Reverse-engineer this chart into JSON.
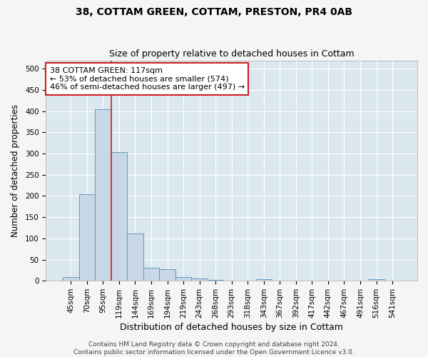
{
  "title": "38, COTTAM GREEN, COTTAM, PRESTON, PR4 0AB",
  "subtitle": "Size of property relative to detached houses in Cottam",
  "xlabel": "Distribution of detached houses by size in Cottam",
  "ylabel": "Number of detached properties",
  "bar_labels": [
    "45sqm",
    "70sqm",
    "95sqm",
    "119sqm",
    "144sqm",
    "169sqm",
    "194sqm",
    "219sqm",
    "243sqm",
    "268sqm",
    "293sqm",
    "318sqm",
    "343sqm",
    "367sqm",
    "392sqm",
    "417sqm",
    "442sqm",
    "467sqm",
    "491sqm",
    "516sqm",
    "541sqm"
  ],
  "bar_values": [
    8,
    204,
    405,
    303,
    112,
    30,
    27,
    8,
    5,
    2,
    0,
    0,
    3,
    0,
    0,
    0,
    0,
    0,
    0,
    4,
    0
  ],
  "bar_color": "#c8d8e8",
  "bar_edge_color": "#6699bb",
  "bar_width": 1.0,
  "vline_x_index": 2.5,
  "vline_color": "#cc2222",
  "annotation_text": "38 COTTAM GREEN: 117sqm\n← 53% of detached houses are smaller (574)\n46% of semi-detached houses are larger (497) →",
  "annotation_box_facecolor": "#ffffff",
  "annotation_box_edgecolor": "#cc2222",
  "ylim": [
    0,
    520
  ],
  "yticks": [
    0,
    50,
    100,
    150,
    200,
    250,
    300,
    350,
    400,
    450,
    500
  ],
  "background_color": "#dce8f0",
  "grid_color": "#ffffff",
  "fig_facecolor": "#f5f5f5",
  "footer_text": "Contains HM Land Registry data © Crown copyright and database right 2024.\nContains public sector information licensed under the Open Government Licence v3.0.",
  "title_fontsize": 10,
  "subtitle_fontsize": 9,
  "xlabel_fontsize": 9,
  "ylabel_fontsize": 8.5,
  "tick_fontsize": 7.5,
  "annotation_fontsize": 8,
  "footer_fontsize": 6.5
}
